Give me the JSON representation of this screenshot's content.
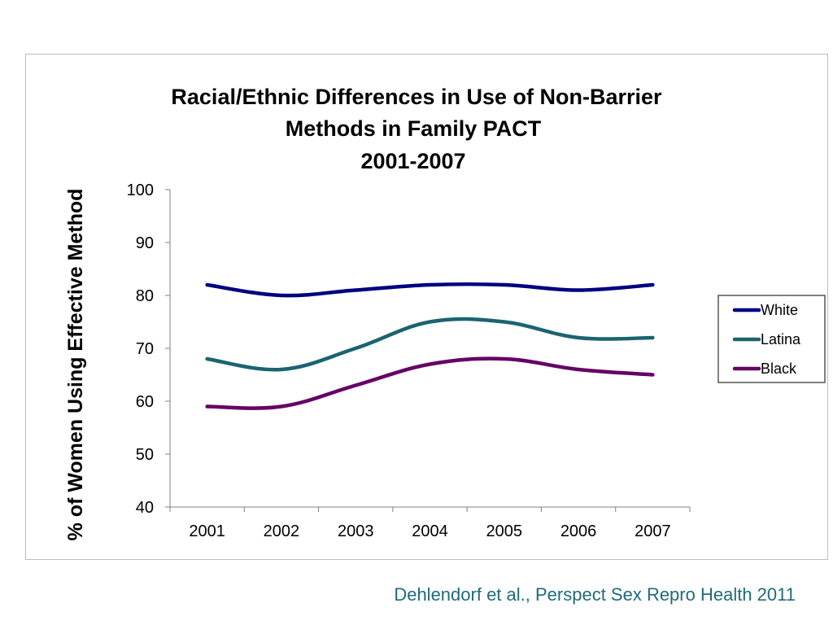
{
  "chart_data": {
    "type": "line",
    "title": [
      "Racial/Ethnic Differences in Use of Non-Barrier",
      "Methods in Family PACT",
      "2001-2007"
    ],
    "xlabel": "",
    "ylabel": "% of Women Using Effective Method",
    "categories": [
      "2001",
      "2002",
      "2003",
      "2004",
      "2005",
      "2006",
      "2007"
    ],
    "ylim": [
      40,
      100
    ],
    "yticks": [
      40,
      50,
      60,
      70,
      80,
      90,
      100
    ],
    "grid": false,
    "legend_position": "right",
    "series": [
      {
        "name": "White",
        "color": "#000080",
        "values": [
          82,
          80,
          81,
          82,
          82,
          81,
          82
        ]
      },
      {
        "name": "Latina",
        "color": "#1a6470",
        "values": [
          68,
          66,
          70,
          75,
          75,
          72,
          72
        ]
      },
      {
        "name": "Black",
        "color": "#660066",
        "values": [
          59,
          59,
          63,
          67,
          68,
          66,
          65
        ]
      }
    ]
  },
  "citation": "Dehlendorf et al., Perspect Sex Repro Health 2011"
}
